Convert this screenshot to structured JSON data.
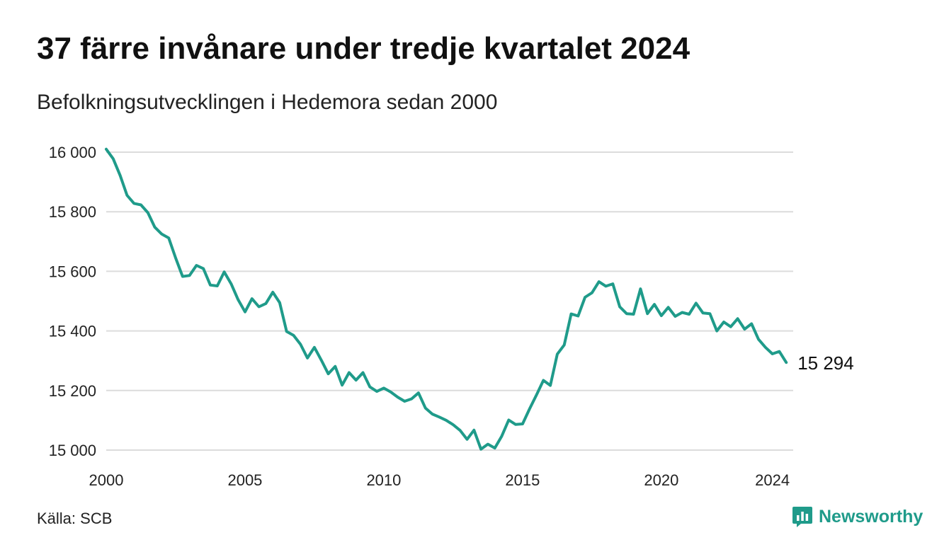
{
  "header": {
    "title": "37 färre invånare under tredje kvartalet 2024",
    "subtitle": "Befolkningsutvecklingen i Hedemora sedan 2000"
  },
  "footer": {
    "source": "Källa: SCB",
    "brand": "Newsworthy",
    "brand_color": "#1f9b8a"
  },
  "chart_data": {
    "type": "line",
    "title": "37 färre invånare under tredje kvartalet 2024",
    "subtitle": "Befolkningsutvecklingen i Hedemora sedan 2000",
    "xlabel": "",
    "ylabel": "",
    "xlim": [
      2000,
      2024.75
    ],
    "ylim": [
      15000,
      16000
    ],
    "x_ticks": [
      2000,
      2005,
      2010,
      2015,
      2020,
      2024
    ],
    "x_tick_labels": [
      "2000",
      "2005",
      "2010",
      "2015",
      "2020",
      "2024"
    ],
    "y_ticks": [
      15000,
      15200,
      15400,
      15600,
      15800,
      16000
    ],
    "y_tick_labels": [
      "15 000",
      "15 200",
      "15 400",
      "15 600",
      "15 800",
      "16 000"
    ],
    "grid": "horizontal",
    "line_color": "#1f9b8a",
    "end_label": "15 294",
    "series": [
      {
        "values": [
          16010,
          15978,
          15922,
          15855,
          15828,
          15823,
          15797,
          15748,
          15725,
          15712,
          15645,
          15583,
          15586,
          15620,
          15609,
          15554,
          15551,
          15598,
          15558,
          15505,
          15464,
          15508,
          15481,
          15492,
          15530,
          15495,
          15398,
          15385,
          15355,
          15309,
          15345,
          15302,
          15256,
          15281,
          15218,
          15260,
          15235,
          15260,
          15212,
          15197,
          15208,
          15195,
          15178,
          15164,
          15172,
          15192,
          15141,
          15121,
          15111,
          15100,
          15085,
          15066,
          15036,
          15067,
          15003,
          15020,
          15007,
          15047,
          15101,
          15086,
          15088,
          15138,
          15185,
          15234,
          15217,
          15322,
          15353,
          15457,
          15450,
          15513,
          15528,
          15565,
          15550,
          15558,
          15481,
          15458,
          15456,
          15541,
          15458,
          15489,
          15451,
          15479,
          15449,
          15462,
          15456,
          15493,
          15460,
          15458,
          15400,
          15430,
          15414,
          15441,
          15406,
          15424,
          15372,
          15345,
          15323,
          15331,
          15294
        ],
        "x_start": 2000,
        "step": 0.25
      }
    ]
  }
}
